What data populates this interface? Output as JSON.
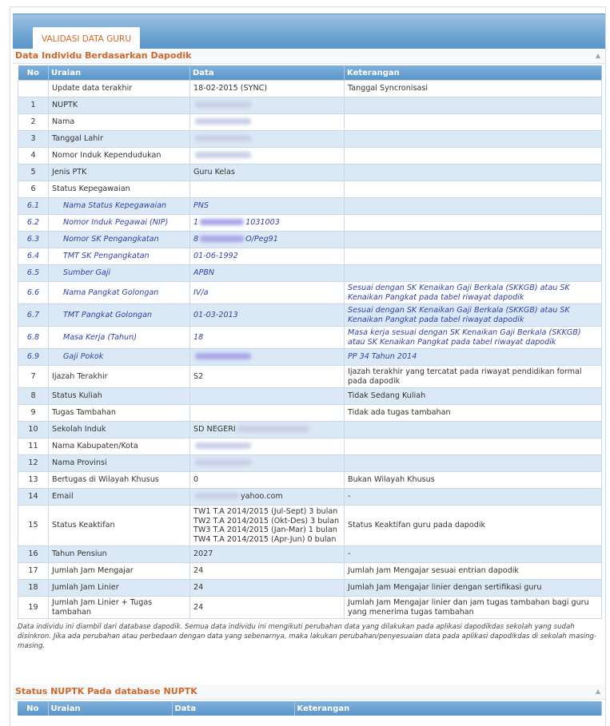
{
  "tab": {
    "label": "VALIDASI DATA GURU"
  },
  "section1": {
    "title": "Data Individu Berdasarkan Dapodik",
    "columns": [
      "No",
      "Uraian",
      "Data",
      "Keterangan"
    ],
    "rows": [
      {
        "no": "",
        "uraian": "Update data terakhir",
        "data": "18-02-2015 (SYNC)",
        "ket": "Tanggal Syncronisasi"
      },
      {
        "no": "1",
        "uraian": "NUPTK",
        "data": "",
        "blur": true,
        "ket": ""
      },
      {
        "no": "2",
        "uraian": "Nama",
        "data": "",
        "blur": true,
        "ket": ""
      },
      {
        "no": "3",
        "uraian": "Tanggal Lahir",
        "data": "",
        "blur": true,
        "ket": ""
      },
      {
        "no": "4",
        "uraian": "Nomor Induk Kependudukan",
        "data": "",
        "blur": true,
        "ket": ""
      },
      {
        "no": "5",
        "uraian": "Jenis PTK",
        "data": "Guru Kelas",
        "ket": ""
      },
      {
        "no": "6",
        "uraian": "Status Kepegawaian",
        "data": "",
        "ket": ""
      },
      {
        "no": "6.1",
        "uraian": "Nama Status Kepegawaian",
        "data": "PNS",
        "ket": "",
        "sub": true
      },
      {
        "no": "6.2",
        "uraian": "Nomor Induk Pegawai (NIP)",
        "data_pre": "1",
        "data": "1031003",
        "blurp": true,
        "ket": "",
        "sub": true
      },
      {
        "no": "6.3",
        "uraian": "Nomor SK Pengangkatan",
        "data_pre": "8",
        "data": "O/Peg91",
        "blurp": true,
        "ket": "",
        "sub": true
      },
      {
        "no": "6.4",
        "uraian": "TMT SK Pengangkatan",
        "data": "01-06-1992",
        "ket": "",
        "sub": true
      },
      {
        "no": "6.5",
        "uraian": "Sumber Gaji",
        "data": "APBN",
        "ket": "",
        "sub": true
      },
      {
        "no": "6.6",
        "uraian": "Nama Pangkat Golongan",
        "data": "IV/a",
        "ket": "Sesuai dengan SK Kenaikan Gaji Berkala (SKKGB) atau SK Kenaikan Pangkat pada tabel riwayat dapodik",
        "sub": true
      },
      {
        "no": "6.7",
        "uraian": "TMT Pangkat Golongan",
        "data": "01-03-2013",
        "ket": "Sesuai dengan SK Kenaikan Gaji Berkala (SKKGB) atau SK Kenaikan Pangkat pada tabel riwayat dapodik",
        "sub": true
      },
      {
        "no": "6.8",
        "uraian": "Masa Kerja (Tahun)",
        "data": "18",
        "ket": "Masa kerja sesuai dengan SK Kenaikan Gaji Berkala (SKKGB) atau SK Kenaikan Pangkat pada tabel riwayat dapodik",
        "sub": true
      },
      {
        "no": "6.9",
        "uraian": "Gaji Pokok",
        "data": "",
        "blurp": true,
        "ket": "PP 34 Tahun 2014",
        "sub": true
      },
      {
        "no": "7",
        "uraian": "Ijazah Terakhir",
        "data": "S2",
        "ket": "Ijazah terakhir yang tercatat pada riwayat pendidikan formal pada dapodik"
      },
      {
        "no": "8",
        "uraian": "Status Kuliah",
        "data": "",
        "ket": "Tidak Sedang Kuliah"
      },
      {
        "no": "9",
        "uraian": "Tugas Tambahan",
        "data": "",
        "ket": "Tidak ada tugas tambahan"
      },
      {
        "no": "10",
        "uraian": "Sekolah Induk",
        "data_pre": "SD NEGERI",
        "data": "",
        "blur": true,
        "ket": ""
      },
      {
        "no": "11",
        "uraian": "Nama Kabupaten/Kota",
        "data": "",
        "blur": true,
        "ket": ""
      },
      {
        "no": "12",
        "uraian": "Nama Provinsi",
        "data": "",
        "blur": true,
        "ket": ""
      },
      {
        "no": "13",
        "uraian": "Bertugas di Wilayah Khusus",
        "data": "0",
        "ket": "Bukan Wilayah Khusus"
      },
      {
        "no": "14",
        "uraian": "Email",
        "data_pre": "",
        "data": "yahoo.com",
        "blur": true,
        "ket": "-"
      },
      {
        "no": "15",
        "uraian": "Status Keaktifan",
        "data": "TW1 T.A 2014/2015 (Jul-Sept) 3 bulan\nTW2 T.A 2014/2015 (Okt-Des) 3 bulan\nTW3 T.A 2014/2015 (Jan-Mar) 1 bulan\nTW4 T.A 2014/2015 (Apr-Jun) 0 bulan",
        "ket": "Status Keaktifan guru pada dapodik"
      },
      {
        "no": "16",
        "uraian": "Tahun Pensiun",
        "data": "2027",
        "ket": "-"
      },
      {
        "no": "17",
        "uraian": "Jumlah Jam Mengajar",
        "data": "24",
        "ket": "Jumlah Jam Mengajar sesuai entrian dapodik"
      },
      {
        "no": "18",
        "uraian": "Jumlah Jam Linier",
        "data": "24",
        "ket": "Jumlah Jam Mengajar linier dengan sertifikasi guru"
      },
      {
        "no": "19",
        "uraian": "Jumlah Jam Linier + Tugas tambahan",
        "data": "24",
        "ket": "Jumlah Jam Mengajar linier dan jam tugas tambahan bagi guru yang menerima tugas tambahan"
      }
    ],
    "footnote": "Data individu ini diambil dari database dapodik. Semua data individu ini mengikuti perubahan data yang dilakukan pada aplikasi dapodikdas sekolah yang sudah disinkron. Jika ada perubahan atau perbedaan dengan data yang sebenarnya, maka lakukan perubahan/penyesuaian data pada aplikasi dapodikdas di sekolah masing-masing."
  },
  "section2": {
    "title": "Status NUPTK Pada database NUPTK",
    "columns": [
      "No",
      "Uraian",
      "Data",
      "Keterangan"
    ]
  }
}
